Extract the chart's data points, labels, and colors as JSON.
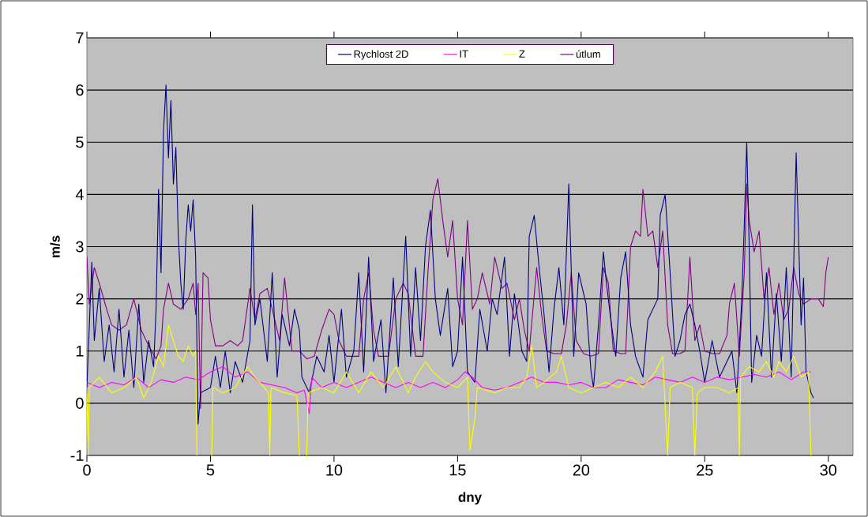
{
  "chart_data": {
    "type": "line",
    "xlabel": "dny",
    "ylabel": "m/s",
    "xlim": [
      0,
      31
    ],
    "ylim": [
      -1,
      7
    ],
    "xticks": [
      0,
      5,
      10,
      15,
      20,
      25,
      30
    ],
    "yticks": [
      -1,
      0,
      1,
      2,
      3,
      4,
      5,
      6,
      7
    ],
    "grid": "y",
    "legend": "top",
    "marker": "none",
    "line_style": "solid",
    "series": [
      {
        "name": "útlum",
        "color": "#800080",
        "x": [
          0,
          0.1,
          0.3,
          0.5,
          0.8,
          1.0,
          1.3,
          1.6,
          1.9,
          2.2,
          2.5,
          2.8,
          3.0,
          3.1,
          3.3,
          3.5,
          3.8,
          4.1,
          4.3,
          4.4,
          4.5,
          4.6,
          4.7,
          4.9,
          5.0,
          5.2,
          5.5,
          5.8,
          6.1,
          6.3,
          6.6,
          6.8,
          7.0,
          7.3,
          7.6,
          7.8,
          8.0,
          8.3,
          8.6,
          8.9,
          9.2,
          9.5,
          9.8,
          10.0,
          10.2,
          10.5,
          10.8,
          11.0,
          11.2,
          11.4,
          11.6,
          11.8,
          12.2,
          12.5,
          12.8,
          13.0,
          13.3,
          13.6,
          13.8,
          14.0,
          14.2,
          14.4,
          14.6,
          14.8,
          15.0,
          15.2,
          15.4,
          15.6,
          15.8,
          16.0,
          16.3,
          16.5,
          16.8,
          17.0,
          17.3,
          17.5,
          17.7,
          17.9,
          18.2,
          18.4,
          18.6,
          18.9,
          19.2,
          19.4,
          19.6,
          19.8,
          20.1,
          20.4,
          20.7,
          20.9,
          21.1,
          21.3,
          21.6,
          21.8,
          22.0,
          22.2,
          22.4,
          22.5,
          22.7,
          22.9,
          23.1,
          23.3,
          23.5,
          23.7,
          24.0,
          24.2,
          24.4,
          24.6,
          24.8,
          25.0,
          25.3,
          25.6,
          25.9,
          26.0,
          26.2,
          26.4,
          26.6,
          26.7,
          26.8,
          27.0,
          27.2,
          27.4,
          27.6,
          27.8,
          28.0,
          28.2,
          28.4,
          28.6,
          28.8,
          29.0,
          29.3,
          29.6,
          29.8,
          29.9,
          30.0
        ],
        "values": [
          2.8,
          1.9,
          2.6,
          2.3,
          1.8,
          1.5,
          1.4,
          1.5,
          2.0,
          1.4,
          1.1,
          0.85,
          1.1,
          1.8,
          2.3,
          1.9,
          1.8,
          2.0,
          2.3,
          1.7,
          2.3,
          -0.1,
          2.5,
          2.4,
          1.6,
          1.1,
          1.1,
          1.2,
          1.1,
          1.2,
          2.2,
          1.6,
          2.1,
          2.2,
          1.6,
          1.2,
          2.4,
          1.0,
          1.0,
          0.85,
          0.9,
          1.4,
          1.8,
          1.7,
          1.2,
          0.9,
          0.9,
          0.9,
          2.0,
          2.5,
          1.4,
          0.9,
          0.9,
          2.0,
          2.3,
          2.1,
          0.9,
          0.9,
          2.5,
          3.9,
          4.3,
          3.5,
          2.8,
          3.5,
          2.0,
          1.5,
          3.5,
          1.8,
          2.0,
          2.5,
          1.9,
          2.8,
          2.2,
          2.3,
          1.6,
          2.0,
          1.4,
          1.0,
          2.6,
          1.7,
          1.0,
          0.95,
          0.95,
          1.5,
          2.5,
          1.2,
          0.95,
          0.9,
          0.95,
          2.6,
          2.3,
          1.0,
          0.95,
          0.95,
          3.0,
          3.3,
          3.2,
          4.1,
          3.2,
          3.3,
          2.6,
          3.3,
          1.5,
          0.95,
          0.95,
          1.0,
          2.8,
          1.2,
          1.5,
          1.0,
          0.95,
          0.95,
          1.3,
          1.9,
          2.3,
          0.9,
          2.5,
          4.2,
          3.5,
          2.9,
          3.3,
          2.0,
          2.6,
          1.7,
          2.3,
          1.6,
          1.8,
          2.6,
          2.1,
          1.9,
          2.0,
          2.0,
          1.85,
          2.5,
          2.8
        ]
      },
      {
        "name": "Rychlost 2D",
        "color": "#000080",
        "x": [
          0,
          0.2,
          0.3,
          0.5,
          0.7,
          0.9,
          1.1,
          1.3,
          1.5,
          1.7,
          1.9,
          2.1,
          2.3,
          2.5,
          2.7,
          2.8,
          2.9,
          3.0,
          3.1,
          3.2,
          3.3,
          3.4,
          3.5,
          3.6,
          3.7,
          3.8,
          3.9,
          4.0,
          4.1,
          4.2,
          4.3,
          4.4,
          4.5,
          4.6,
          5.0,
          5.2,
          5.4,
          5.6,
          5.8,
          6.0,
          6.3,
          6.6,
          6.7,
          6.8,
          7.0,
          7.3,
          7.5,
          7.7,
          7.9,
          8.2,
          8.4,
          8.6,
          8.7,
          9.0,
          9.3,
          9.6,
          9.8,
          10.0,
          10.3,
          10.5,
          10.8,
          11.0,
          11.2,
          11.4,
          11.6,
          11.9,
          12.1,
          12.4,
          12.6,
          12.9,
          13.1,
          13.3,
          13.5,
          13.7,
          13.9,
          14.1,
          14.3,
          14.6,
          14.8,
          15.0,
          15.2,
          15.4,
          15.7,
          15.9,
          16.2,
          16.4,
          16.6,
          16.9,
          17.1,
          17.3,
          17.6,
          17.8,
          17.9,
          18.1,
          18.3,
          18.5,
          18.7,
          18.9,
          19.1,
          19.3,
          19.5,
          19.7,
          19.9,
          20.2,
          20.4,
          20.5,
          20.7,
          20.9,
          21.0,
          21.2,
          21.4,
          21.6,
          21.8,
          22.0,
          22.2,
          22.5,
          22.7,
          22.9,
          23.1,
          23.2,
          23.4,
          23.6,
          23.8,
          24.0,
          24.2,
          24.4,
          24.6,
          24.8,
          25.0,
          25.3,
          25.6,
          25.9,
          26.1,
          26.3,
          26.5,
          26.6,
          26.7,
          26.8,
          26.9,
          27.1,
          27.3,
          27.5,
          27.7,
          27.9,
          28.1,
          28.3,
          28.5,
          28.7,
          28.9,
          29.0,
          29.1,
          29.3,
          29.4
        ],
        "values": [
          0.3,
          2.7,
          1.2,
          2.2,
          0.8,
          1.5,
          0.6,
          1.8,
          0.5,
          1.4,
          0.3,
          1.9,
          0.4,
          1.2,
          0.7,
          1.8,
          4.1,
          2.5,
          5.2,
          6.1,
          4.7,
          5.8,
          4.2,
          4.9,
          3.2,
          2.3,
          1.8,
          3.1,
          3.8,
          3.3,
          3.9,
          2.8,
          -0.4,
          0.2,
          0.3,
          0.9,
          0.3,
          1.0,
          0.2,
          0.8,
          0.4,
          1.2,
          3.8,
          1.5,
          2.0,
          0.8,
          2.5,
          0.5,
          1.7,
          1.1,
          1.8,
          1.4,
          0.5,
          0.2,
          0.9,
          0.6,
          1.3,
          0.4,
          1.8,
          0.5,
          1.0,
          2.5,
          0.6,
          2.8,
          0.8,
          1.6,
          0.2,
          2.4,
          0.7,
          3.2,
          0.9,
          2.6,
          1.2,
          3.0,
          3.7,
          2.0,
          1.3,
          2.2,
          0.7,
          1.0,
          2.8,
          0.6,
          0.4,
          1.8,
          1.0,
          2.0,
          1.7,
          2.8,
          0.9,
          2.1,
          1.0,
          0.8,
          3.2,
          3.6,
          2.6,
          1.7,
          0.6,
          1.8,
          2.6,
          1.5,
          4.2,
          0.9,
          2.5,
          1.9,
          0.6,
          0.3,
          1.5,
          2.9,
          2.4,
          1.6,
          0.9,
          2.4,
          2.9,
          1.5,
          0.9,
          0.5,
          1.6,
          1.8,
          2.0,
          3.6,
          4.0,
          2.5,
          0.9,
          1.2,
          1.7,
          1.9,
          1.5,
          1.0,
          0.4,
          1.2,
          0.5,
          0.8,
          1.0,
          0.2,
          2.0,
          3.4,
          5.0,
          3.0,
          0.4,
          1.3,
          0.9,
          2.5,
          0.5,
          2.1,
          0.8,
          2.6,
          0.5,
          4.8,
          1.5,
          2.4,
          0.6,
          0.2,
          0.1
        ]
      },
      {
        "name": "IT",
        "color": "#ff00ff",
        "x": [
          0,
          0.5,
          1.0,
          1.5,
          2.0,
          2.5,
          3.0,
          3.5,
          4.0,
          4.5,
          5.0,
          5.5,
          6.0,
          6.5,
          7.0,
          7.5,
          8.0,
          8.5,
          8.8,
          9.0,
          9.1,
          9.5,
          10.0,
          10.5,
          11.0,
          11.5,
          12.0,
          12.5,
          13.0,
          13.5,
          14.0,
          14.5,
          15.0,
          15.3,
          15.6,
          16.0,
          16.5,
          17.0,
          17.5,
          18.0,
          18.5,
          19.0,
          19.5,
          20.0,
          20.5,
          21.0,
          21.5,
          22.0,
          22.5,
          23.0,
          23.5,
          24.0,
          24.5,
          25.0,
          25.5,
          26.0,
          26.5,
          27.0,
          27.5,
          28.0,
          28.5,
          29.0,
          29.3
        ],
        "values": [
          0.4,
          0.3,
          0.4,
          0.35,
          0.5,
          0.3,
          0.45,
          0.4,
          0.5,
          0.45,
          0.6,
          0.7,
          0.5,
          0.6,
          0.4,
          0.35,
          0.3,
          0.2,
          0.25,
          -0.2,
          0.5,
          0.3,
          0.4,
          0.3,
          0.4,
          0.5,
          0.4,
          0.3,
          0.4,
          0.3,
          0.4,
          0.3,
          0.45,
          0.6,
          0.5,
          0.3,
          0.25,
          0.3,
          0.4,
          0.5,
          0.4,
          0.4,
          0.35,
          0.4,
          0.3,
          0.3,
          0.45,
          0.4,
          0.35,
          0.5,
          0.45,
          0.4,
          0.5,
          0.4,
          0.5,
          0.45,
          0.5,
          0.55,
          0.5,
          0.6,
          0.45,
          0.6,
          0.6
        ]
      },
      {
        "name": "Z",
        "color": "#ffff00",
        "x": [
          0,
          0.05,
          0.1,
          0.5,
          1.0,
          1.5,
          2.0,
          2.3,
          2.6,
          2.9,
          3.1,
          3.3,
          3.5,
          3.7,
          3.9,
          4.1,
          4.3,
          4.4,
          4.45,
          4.5,
          5.05,
          5.1,
          5.5,
          6.0,
          6.5,
          6.8,
          7.0,
          7.35,
          7.4,
          7.45,
          8.0,
          8.5,
          8.6,
          8.65,
          8.9,
          8.95,
          9.5,
          10.0,
          10.5,
          11.0,
          11.5,
          12.0,
          12.5,
          13.0,
          13.3,
          13.7,
          14.0,
          14.5,
          15.0,
          15.4,
          15.5,
          15.7,
          15.8,
          16.5,
          17.0,
          17.5,
          17.8,
          18.0,
          18.2,
          18.5,
          19.0,
          19.2,
          19.5,
          20.0,
          20.5,
          21.0,
          21.5,
          22.0,
          22.5,
          23.0,
          23.3,
          23.5,
          23.6,
          24.0,
          24.5,
          24.6,
          24.7,
          25.0,
          25.5,
          26.0,
          26.35,
          26.4,
          26.45,
          26.8,
          27.2,
          27.5,
          27.8,
          28.0,
          28.3,
          28.6,
          28.9,
          29.2,
          29.3
        ],
        "values": [
          0.2,
          -1.0,
          0.3,
          0.5,
          0.2,
          0.3,
          0.5,
          0.1,
          0.4,
          0.9,
          0.7,
          1.5,
          1.2,
          0.9,
          0.8,
          1.1,
          0.9,
          1.0,
          -1.0,
          null,
          -1.0,
          0.3,
          0.2,
          0.3,
          0.7,
          0.5,
          0.4,
          0.2,
          -1.0,
          0.3,
          0.2,
          0.15,
          -1.0,
          null,
          -1.0,
          0.2,
          0.3,
          0.2,
          0.6,
          0.2,
          0.6,
          0.3,
          0.7,
          0.2,
          0.5,
          0.8,
          0.6,
          0.4,
          0.3,
          0.5,
          -0.9,
          -0.3,
          0.3,
          0.2,
          0.3,
          0.3,
          0.5,
          1.1,
          0.3,
          0.4,
          0.6,
          0.9,
          0.3,
          0.2,
          0.3,
          0.4,
          0.3,
          0.5,
          0.3,
          0.6,
          0.9,
          -1.0,
          0.3,
          0.4,
          0.3,
          -1.0,
          0.2,
          0.3,
          0.3,
          0.2,
          0.3,
          -1.0,
          0.5,
          0.7,
          0.6,
          0.8,
          0.5,
          0.8,
          0.6,
          0.9,
          0.5,
          0.6,
          -1.0
        ]
      }
    ]
  }
}
